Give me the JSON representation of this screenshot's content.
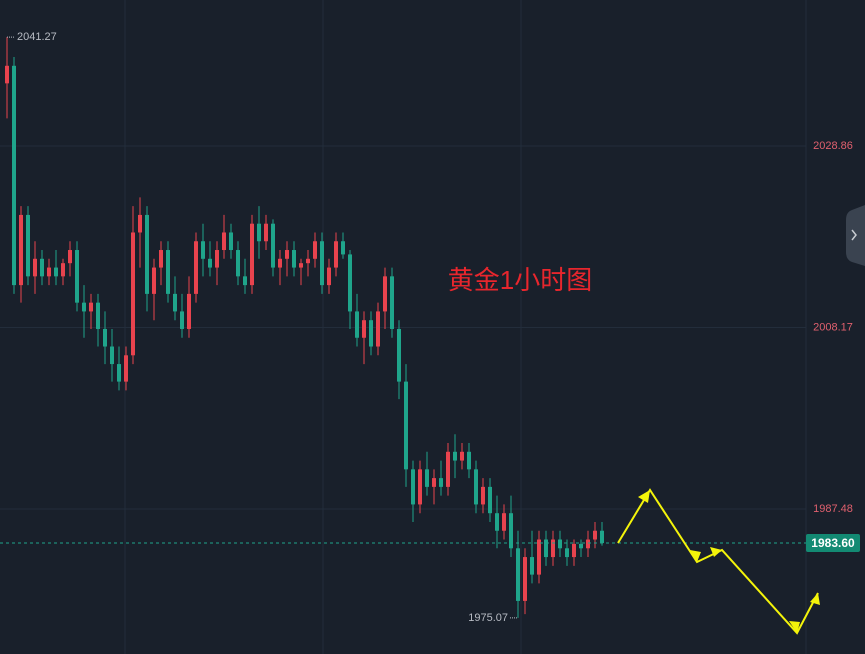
{
  "chart_data": {
    "type": "candlestick",
    "annotation": "黄金1小时图",
    "up_color": "#e8434e",
    "down_color": "#1fa58b",
    "ylim": [
      1970.95,
      2045.5
    ],
    "yticks": [
      1987.48,
      2008.17,
      2028.86
    ],
    "grid": true,
    "high_label": 2041.27,
    "low_label": 1975.07,
    "last_price": 1983.6,
    "last_price_label": "1983.60",
    "candles": [
      [
        2036,
        2041.27,
        2032,
        2038
      ],
      [
        2038,
        2039,
        2012,
        2013
      ],
      [
        2013,
        2022,
        2011,
        2021
      ],
      [
        2021,
        2022,
        2013,
        2014
      ],
      [
        2014,
        2018,
        2012,
        2016
      ],
      [
        2016,
        2017,
        2013,
        2014
      ],
      [
        2014,
        2016,
        2013,
        2015
      ],
      [
        2015,
        2017,
        2013,
        2014
      ],
      [
        2014,
        2016,
        2013,
        2015.5
      ],
      [
        2015.5,
        2018,
        2014,
        2017
      ],
      [
        2017,
        2018,
        2010,
        2011
      ],
      [
        2011,
        2013,
        2007,
        2010
      ],
      [
        2010,
        2012,
        2008,
        2011
      ],
      [
        2011,
        2012,
        2006,
        2008
      ],
      [
        2008,
        2010,
        2004,
        2006
      ],
      [
        2006,
        2008,
        2002,
        2004
      ],
      [
        2004,
        2006,
        2001,
        2002
      ],
      [
        2002,
        2006,
        2001,
        2005
      ],
      [
        2005,
        2022,
        2004,
        2019
      ],
      [
        2019,
        2023,
        2015,
        2021
      ],
      [
        2021,
        2022,
        2010,
        2012
      ],
      [
        2012,
        2016,
        2009,
        2015
      ],
      [
        2015,
        2018,
        2013,
        2017
      ],
      [
        2017,
        2018,
        2011,
        2012
      ],
      [
        2012,
        2014,
        2009,
        2010
      ],
      [
        2010,
        2012,
        2007,
        2008
      ],
      [
        2008,
        2014,
        2007,
        2012
      ],
      [
        2012,
        2019,
        2011,
        2018
      ],
      [
        2018,
        2020,
        2014,
        2016
      ],
      [
        2016,
        2018,
        2014,
        2015
      ],
      [
        2015,
        2018,
        2013,
        2017
      ],
      [
        2017,
        2021,
        2016,
        2019
      ],
      [
        2019,
        2020,
        2016,
        2017
      ],
      [
        2017,
        2018,
        2013,
        2014
      ],
      [
        2014,
        2016,
        2012,
        2013
      ],
      [
        2013,
        2021,
        2012,
        2020
      ],
      [
        2020,
        2022,
        2016,
        2018
      ],
      [
        2018,
        2021,
        2017,
        2020
      ],
      [
        2020,
        2020.5,
        2014,
        2015
      ],
      [
        2015,
        2017,
        2013,
        2016
      ],
      [
        2016,
        2018,
        2014,
        2017
      ],
      [
        2017,
        2018,
        2014,
        2015
      ],
      [
        2015,
        2016,
        2013,
        2015.5
      ],
      [
        2015.5,
        2017,
        2014,
        2016
      ],
      [
        2016,
        2019,
        2015,
        2018
      ],
      [
        2018,
        2019,
        2012,
        2013
      ],
      [
        2013,
        2016,
        2012,
        2015
      ],
      [
        2015,
        2019,
        2014,
        2018
      ],
      [
        2018,
        2019,
        2016,
        2016.5
      ],
      [
        2016.5,
        2017,
        2008,
        2010
      ],
      [
        2010,
        2012,
        2006,
        2007
      ],
      [
        2007,
        2010,
        2004,
        2009
      ],
      [
        2009,
        2010,
        2005,
        2006
      ],
      [
        2006,
        2011,
        2005,
        2010
      ],
      [
        2010,
        2015,
        2008,
        2014
      ],
      [
        2014,
        2015,
        2007,
        2008
      ],
      [
        2008,
        2009,
        2000,
        2002
      ],
      [
        2002,
        2004,
        1990,
        1992
      ],
      [
        1992,
        1993,
        1986,
        1988
      ],
      [
        1988,
        1993,
        1987,
        1992
      ],
      [
        1992,
        1994,
        1989,
        1990
      ],
      [
        1990,
        1992,
        1988,
        1991
      ],
      [
        1991,
        1993,
        1989,
        1990
      ],
      [
        1990,
        1995,
        1989,
        1994
      ],
      [
        1994,
        1996,
        1991,
        1993
      ],
      [
        1993,
        1995,
        1992,
        1994
      ],
      [
        1994,
        1995,
        1991,
        1992
      ],
      [
        1992,
        1993,
        1987,
        1988
      ],
      [
        1988,
        1991,
        1987,
        1990
      ],
      [
        1990,
        1991,
        1986,
        1987
      ],
      [
        1987,
        1989,
        1983,
        1985
      ],
      [
        1985,
        1988,
        1984,
        1987
      ],
      [
        1987,
        1989,
        1982,
        1983
      ],
      [
        1983,
        1985,
        1975.07,
        1977
      ],
      [
        1977,
        1983,
        1975.5,
        1982
      ],
      [
        1982,
        1985,
        1979,
        1980
      ],
      [
        1980,
        1985,
        1979,
        1984
      ],
      [
        1984,
        1985,
        1981,
        1982
      ],
      [
        1982,
        1985,
        1981,
        1984
      ],
      [
        1984,
        1985,
        1982,
        1983
      ],
      [
        1983,
        1984,
        1981,
        1982
      ],
      [
        1982,
        1984,
        1981,
        1983.5
      ],
      [
        1983.5,
        1984,
        1982,
        1983
      ],
      [
        1983,
        1985,
        1982,
        1984
      ],
      [
        1984,
        1986,
        1983,
        1985
      ],
      [
        1985,
        1986,
        1983.3,
        1983.6
      ]
    ]
  }
}
